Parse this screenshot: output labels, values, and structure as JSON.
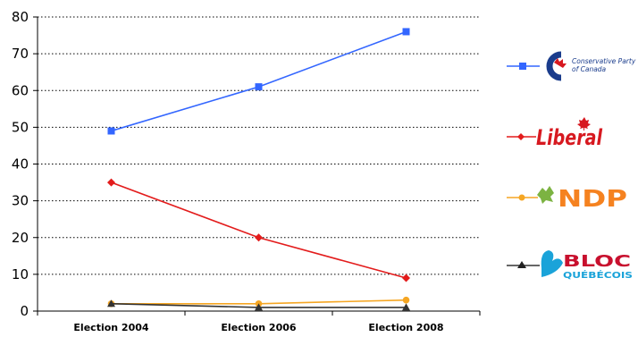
{
  "chart_data": {
    "type": "line",
    "title": "",
    "xlabel": "",
    "ylabel": "",
    "categories": [
      "Election 2004",
      "Election 2006",
      "Election 2008"
    ],
    "ylim": [
      0,
      80
    ],
    "yticks": [
      "0",
      "10",
      "20",
      "30",
      "40",
      "50",
      "60",
      "70",
      "80"
    ],
    "grid": "horizontal dotted",
    "legend_placement": "right",
    "series": [
      {
        "name": "Conservative Party of Canada",
        "values": [
          49,
          61,
          76
        ],
        "color": "#3366ff",
        "marker": "square"
      },
      {
        "name": "Liberal",
        "values": [
          35,
          20,
          9
        ],
        "color": "#e31c1c",
        "marker": "diamond"
      },
      {
        "name": "NDP",
        "values": [
          2,
          2,
          3
        ],
        "color": "#f5a623",
        "marker": "circle"
      },
      {
        "name": "BLOC QUÉBÉCOIS",
        "values": [
          2,
          1,
          1
        ],
        "color": "#333333",
        "marker": "triangle"
      }
    ]
  },
  "legend": {
    "conservative_line1": "Conservative Party",
    "conservative_line2": "of Canada",
    "liberal": "Liberal",
    "ndp": "NDP",
    "bloc_line1": "BLOC",
    "bloc_line2": "QUÉBÉCOIS"
  },
  "colors": {
    "conservative_logo": "#1a3c8c",
    "liberal_logo": "#d71920",
    "ndp_logo": "#f58220",
    "bloc_logo": "#1aa3d9",
    "bloc_text": "#c8102e"
  }
}
